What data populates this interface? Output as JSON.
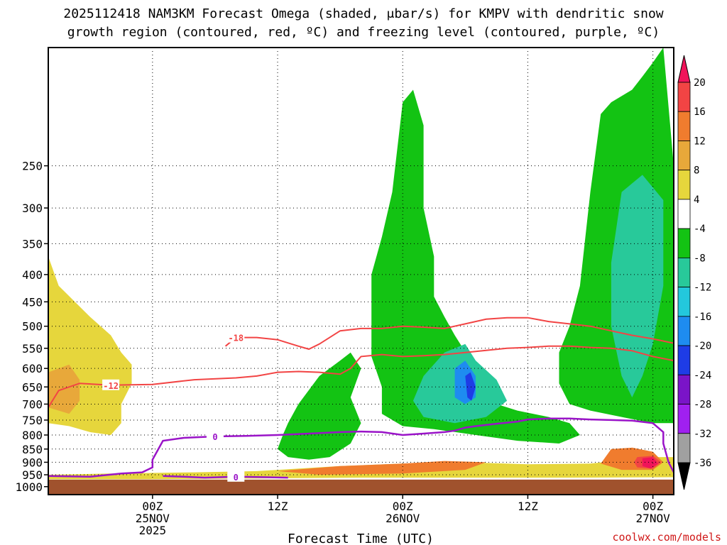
{
  "chart_data": {
    "type": "heatmap",
    "title_line1": "2025112418 NAM3KM Forecast Omega (shaded, μbar/s) for KMPV with dendritic snow",
    "title_line2": "growth region (contoured, red, ºC) and freezing level (contoured, purple, ºC)",
    "xlabel": "Forecast Time (UTC)",
    "credit": "coolwx.com/models",
    "x_range_hours": [
      -10,
      50
    ],
    "y_range_hpa": [
      1035,
      150
    ],
    "y_ticks": [
      250,
      300,
      350,
      400,
      450,
      500,
      550,
      600,
      650,
      700,
      750,
      800,
      850,
      900,
      950,
      1000
    ],
    "x_ticks": [
      {
        "hour": 0,
        "line1": "00Z",
        "line2": "25NOV",
        "line3": "2025"
      },
      {
        "hour": 12,
        "line1": "12Z",
        "line2": "",
        "line3": ""
      },
      {
        "hour": 24,
        "line1": "00Z",
        "line2": "26NOV",
        "line3": ""
      },
      {
        "hour": 36,
        "line1": "12Z",
        "line2": "",
        "line3": ""
      },
      {
        "hour": 48,
        "line1": "00Z",
        "line2": "27NOV",
        "line3": ""
      }
    ],
    "terrain_top_hpa": 970,
    "colorbar": {
      "labels": [
        "20",
        "16",
        "12",
        "8",
        "4",
        "-4",
        "-8",
        "-12",
        "-16",
        "-20",
        "-24",
        "-28",
        "-32",
        "-36"
      ],
      "colors": [
        "#f0145a",
        "#f24444",
        "#f07c2e",
        "#e8a83a",
        "#e6d63c",
        "#ffffff",
        "#13c313",
        "#28c99a",
        "#23c8dc",
        "#1e8cf0",
        "#1e3ce6",
        "#7a14c8",
        "#a020f0",
        "#a0a0a0",
        "#000000"
      ]
    },
    "omega_regions": [
      {
        "name": "upward-left",
        "color": "#e6d63c",
        "points": [
          [
            -10,
            370
          ],
          [
            -9,
            420
          ],
          [
            -6,
            480
          ],
          [
            -4,
            520
          ],
          [
            -3,
            560
          ],
          [
            -2,
            590
          ],
          [
            -2,
            640
          ],
          [
            -3,
            700
          ],
          [
            -3,
            760
          ],
          [
            -4,
            800
          ],
          [
            -6,
            790
          ],
          [
            -8,
            770
          ],
          [
            -10,
            760
          ]
        ]
      },
      {
        "name": "upward-left-core",
        "color": "#e8a83a",
        "points": [
          [
            -10,
            610
          ],
          [
            -8,
            590
          ],
          [
            -7,
            630
          ],
          [
            -7,
            690
          ],
          [
            -8,
            730
          ],
          [
            -10,
            710
          ]
        ]
      },
      {
        "name": "warm-low-band",
        "color": "#e6d63c",
        "points": [
          [
            -10,
            950
          ],
          [
            -4,
            945
          ],
          [
            4,
            940
          ],
          [
            10,
            935
          ],
          [
            18,
            915
          ],
          [
            24,
            905
          ],
          [
            30,
            900
          ],
          [
            36,
            908
          ],
          [
            42,
            905
          ],
          [
            48,
            880
          ],
          [
            50,
            880
          ],
          [
            50,
            960
          ],
          [
            40,
            962
          ],
          [
            30,
            962
          ],
          [
            20,
            962
          ],
          [
            10,
            965
          ],
          [
            0,
            968
          ],
          [
            -10,
            968
          ]
        ]
      },
      {
        "name": "warm-low-band-orange",
        "color": "#f07c2e",
        "points": [
          [
            12,
            935
          ],
          [
            18,
            915
          ],
          [
            24,
            905
          ],
          [
            28,
            895
          ],
          [
            32,
            900
          ],
          [
            30,
            930
          ],
          [
            24,
            945
          ],
          [
            16,
            950
          ]
        ]
      },
      {
        "name": "green-upper-a",
        "color": "#13c313",
        "points": [
          [
            12.5,
            800
          ],
          [
            13,
            760
          ],
          [
            14,
            700
          ],
          [
            16,
            620
          ],
          [
            18,
            580
          ],
          [
            19,
            560
          ],
          [
            20,
            600
          ],
          [
            19,
            680
          ],
          [
            20,
            760
          ],
          [
            19,
            830
          ],
          [
            17,
            880
          ],
          [
            15,
            890
          ],
          [
            13,
            880
          ],
          [
            12,
            850
          ]
        ]
      },
      {
        "name": "green-upper-b",
        "color": "#13c313",
        "points": [
          [
            22,
            340
          ],
          [
            23,
            280
          ],
          [
            24,
            190
          ],
          [
            25,
            180
          ],
          [
            26,
            210
          ],
          [
            26,
            300
          ],
          [
            27,
            370
          ],
          [
            27,
            440
          ],
          [
            28,
            480
          ],
          [
            29,
            520
          ],
          [
            31,
            600
          ],
          [
            32,
            650
          ],
          [
            33,
            700
          ],
          [
            35,
            720
          ],
          [
            38,
            740
          ],
          [
            40,
            760
          ],
          [
            41,
            800
          ],
          [
            39,
            830
          ],
          [
            35,
            820
          ],
          [
            31,
            800
          ],
          [
            27,
            780
          ],
          [
            24,
            770
          ],
          [
            22,
            730
          ],
          [
            22,
            650
          ],
          [
            21,
            570
          ],
          [
            21,
            470
          ],
          [
            21,
            400
          ]
        ]
      },
      {
        "name": "green-upper-c",
        "color": "#13c313",
        "points": [
          [
            42,
            280
          ],
          [
            43,
            200
          ],
          [
            44,
            190
          ],
          [
            46,
            180
          ],
          [
            47,
            170
          ],
          [
            48,
            160
          ],
          [
            49,
            150
          ],
          [
            50,
            250
          ],
          [
            50,
            760
          ],
          [
            48,
            760
          ],
          [
            45,
            740
          ],
          [
            42,
            720
          ],
          [
            40,
            700
          ],
          [
            39,
            640
          ],
          [
            39,
            560
          ],
          [
            40,
            500
          ],
          [
            41,
            420
          ]
        ]
      },
      {
        "name": "teal-center",
        "color": "#28c99a",
        "points": [
          [
            26,
            620
          ],
          [
            28,
            560
          ],
          [
            30,
            540
          ],
          [
            31,
            580
          ],
          [
            33,
            630
          ],
          [
            34,
            690
          ],
          [
            32,
            740
          ],
          [
            29,
            760
          ],
          [
            26,
            740
          ],
          [
            25,
            690
          ]
        ]
      },
      {
        "name": "teal-right",
        "color": "#28c99a",
        "points": [
          [
            45,
            280
          ],
          [
            47,
            260
          ],
          [
            49,
            290
          ],
          [
            49,
            420
          ],
          [
            48,
            540
          ],
          [
            47,
            620
          ],
          [
            46,
            680
          ],
          [
            45,
            620
          ],
          [
            44,
            500
          ],
          [
            44,
            380
          ]
        ]
      },
      {
        "name": "blue-center",
        "color": "#1e8cf0",
        "points": [
          [
            29,
            600
          ],
          [
            30,
            580
          ],
          [
            31,
            620
          ],
          [
            31,
            680
          ],
          [
            30,
            700
          ],
          [
            29,
            680
          ]
        ]
      },
      {
        "name": "blue-core",
        "color": "#1e3ce6",
        "points": [
          [
            30,
            620
          ],
          [
            30.5,
            610
          ],
          [
            31,
            650
          ],
          [
            30.6,
            690
          ],
          [
            30.2,
            680
          ]
        ]
      },
      {
        "name": "orange-right-blob",
        "color": "#f07c2e",
        "points": [
          [
            44,
            850
          ],
          [
            46,
            845
          ],
          [
            48,
            860
          ],
          [
            49,
            900
          ],
          [
            48,
            930
          ],
          [
            45,
            930
          ],
          [
            43,
            905
          ]
        ]
      },
      {
        "name": "red-core",
        "color": "#f24444",
        "points": [
          [
            46.5,
            880
          ],
          [
            48,
            875
          ],
          [
            48.8,
            900
          ],
          [
            48,
            925
          ],
          [
            46.5,
            920
          ],
          [
            46.2,
            900
          ]
        ]
      },
      {
        "name": "magenta-core",
        "color": "#f0145a",
        "points": [
          [
            47,
            885
          ],
          [
            48,
            880
          ],
          [
            48.5,
            905
          ],
          [
            47.8,
            925
          ],
          [
            47,
            915
          ]
        ]
      }
    ],
    "dgz_contours": [
      {
        "label": "-18",
        "points": [
          [
            7,
            545
          ],
          [
            8,
            525
          ],
          [
            10,
            525
          ],
          [
            12,
            530
          ],
          [
            14,
            545
          ],
          [
            15,
            552
          ],
          [
            16,
            540
          ],
          [
            18,
            510
          ],
          [
            20,
            505
          ],
          [
            22,
            505
          ],
          [
            24,
            500
          ],
          [
            26,
            502
          ],
          [
            28,
            505
          ],
          [
            30,
            495
          ],
          [
            32,
            485
          ],
          [
            34,
            482
          ],
          [
            36,
            482
          ],
          [
            38,
            490
          ],
          [
            40,
            495
          ],
          [
            42,
            500
          ],
          [
            44,
            510
          ],
          [
            46,
            520
          ],
          [
            48,
            528
          ],
          [
            50,
            538
          ]
        ],
        "label_at_hour": 8
      },
      {
        "label": "-12",
        "points": [
          [
            -10,
            710
          ],
          [
            -9,
            660
          ],
          [
            -7,
            640
          ],
          [
            -4,
            645
          ],
          [
            0,
            643
          ],
          [
            4,
            630
          ],
          [
            8,
            625
          ],
          [
            10,
            620
          ],
          [
            12,
            610
          ],
          [
            14,
            608
          ],
          [
            16,
            610
          ],
          [
            18,
            615
          ],
          [
            19,
            600
          ],
          [
            20,
            570
          ],
          [
            22,
            565
          ],
          [
            24,
            570
          ],
          [
            26,
            568
          ],
          [
            28,
            565
          ],
          [
            30,
            560
          ],
          [
            32,
            555
          ],
          [
            34,
            550
          ],
          [
            36,
            548
          ],
          [
            38,
            545
          ],
          [
            40,
            545
          ],
          [
            42,
            548
          ],
          [
            44,
            550
          ],
          [
            46,
            556
          ],
          [
            48,
            570
          ],
          [
            50,
            580
          ]
        ],
        "label_at_hour": -5
      }
    ],
    "freezing_contours": [
      {
        "label": "0",
        "points": [
          [
            -10,
            955
          ],
          [
            -6,
            958
          ],
          [
            -3,
            945
          ],
          [
            -1,
            940
          ],
          [
            0,
            920
          ],
          [
            0,
            890
          ],
          [
            1,
            820
          ],
          [
            3,
            810
          ],
          [
            6,
            805
          ],
          [
            9,
            803
          ],
          [
            12,
            800
          ],
          [
            15,
            795
          ],
          [
            18,
            790
          ],
          [
            20,
            788
          ],
          [
            22,
            790
          ],
          [
            24,
            800
          ],
          [
            26,
            795
          ],
          [
            28,
            790
          ],
          [
            29,
            785
          ],
          [
            30,
            775
          ],
          [
            31,
            770
          ],
          [
            33,
            762
          ],
          [
            35,
            755
          ],
          [
            36,
            748
          ],
          [
            38,
            745
          ],
          [
            40,
            745
          ],
          [
            42,
            748
          ],
          [
            44,
            750
          ],
          [
            46,
            752
          ],
          [
            48,
            760
          ],
          [
            49,
            790
          ],
          [
            49,
            830
          ],
          [
            49.5,
            900
          ],
          [
            50,
            940
          ]
        ],
        "label_at_hour": 7
      },
      {
        "label": "0",
        "points": [
          [
            1,
            955
          ],
          [
            3,
            958
          ],
          [
            5,
            962
          ],
          [
            8,
            958
          ],
          [
            11,
            960
          ],
          [
            13,
            962
          ]
        ],
        "label_at_hour": 7
      }
    ]
  }
}
